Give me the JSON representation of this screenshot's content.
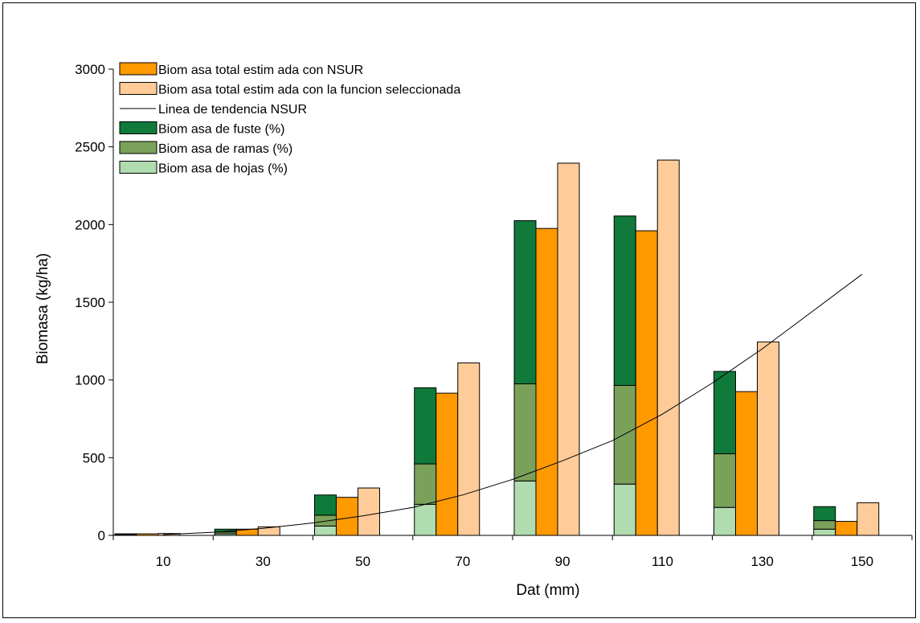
{
  "chart_data": {
    "type": "bar",
    "xlabel": "Dat (mm)",
    "ylabel": "Biomasa (kg/ha)",
    "ylim": [
      0,
      3000
    ],
    "yticks": [
      0,
      500,
      1000,
      1500,
      2000,
      2500,
      3000
    ],
    "categories": [
      "10",
      "30",
      "50",
      "70",
      "90",
      "110",
      "130",
      "150"
    ],
    "x": [
      10,
      30,
      50,
      70,
      90,
      110,
      130,
      150
    ],
    "stacked_components": [
      {
        "name": "Biom asa de hojas (%)",
        "color": "#b0dcb0",
        "values": [
          3,
          10,
          60,
          200,
          350,
          330,
          180,
          40
        ]
      },
      {
        "name": "Biom asa de ramas (%)",
        "color": "#7aa15a",
        "values": [
          3,
          12,
          70,
          260,
          625,
          635,
          345,
          55
        ]
      },
      {
        "name": "Biom asa de fuste (%)",
        "color": "#0f7a3a",
        "values": [
          4,
          18,
          130,
          490,
          1050,
          1090,
          530,
          90
        ]
      }
    ],
    "series": [
      {
        "name": "Biom asa total estim ada con NSUR",
        "color": "#ff9900",
        "values": [
          10,
          40,
          245,
          915,
          1975,
          1960,
          925,
          90
        ]
      },
      {
        "name": "Biom asa total estim ada con la funcion seleccionada",
        "color": "#ffcc99",
        "values": [
          12,
          55,
          305,
          1110,
          2395,
          2415,
          1245,
          210
        ]
      }
    ],
    "trendline": {
      "name": "Linea de tendencia NSUR",
      "color": "#000000",
      "x": [
        10,
        20,
        30,
        40,
        50,
        60,
        70,
        80,
        90,
        100,
        110,
        120,
        130,
        140,
        150
      ],
      "y": [
        5,
        20,
        45,
        80,
        125,
        180,
        260,
        360,
        480,
        610,
        780,
        980,
        1200,
        1440,
        1680
      ]
    },
    "legend": {
      "position": "top-left",
      "entries": [
        {
          "label": "Biom asa total estim ada con NSUR",
          "kind": "box",
          "color": "#ff9900"
        },
        {
          "label": "Biom asa total estim ada con la funcion seleccionada",
          "kind": "box",
          "color": "#ffcc99"
        },
        {
          "label": "Linea de tendencia NSUR",
          "kind": "line",
          "color": "#000000"
        },
        {
          "label": "Biom asa de fuste (%)",
          "kind": "box",
          "color": "#0f7a3a"
        },
        {
          "label": "Biom asa de ramas (%)",
          "kind": "box",
          "color": "#7aa15a"
        },
        {
          "label": "Biom asa de hojas (%)",
          "kind": "box",
          "color": "#b0dcb0"
        }
      ]
    },
    "grid": false
  }
}
